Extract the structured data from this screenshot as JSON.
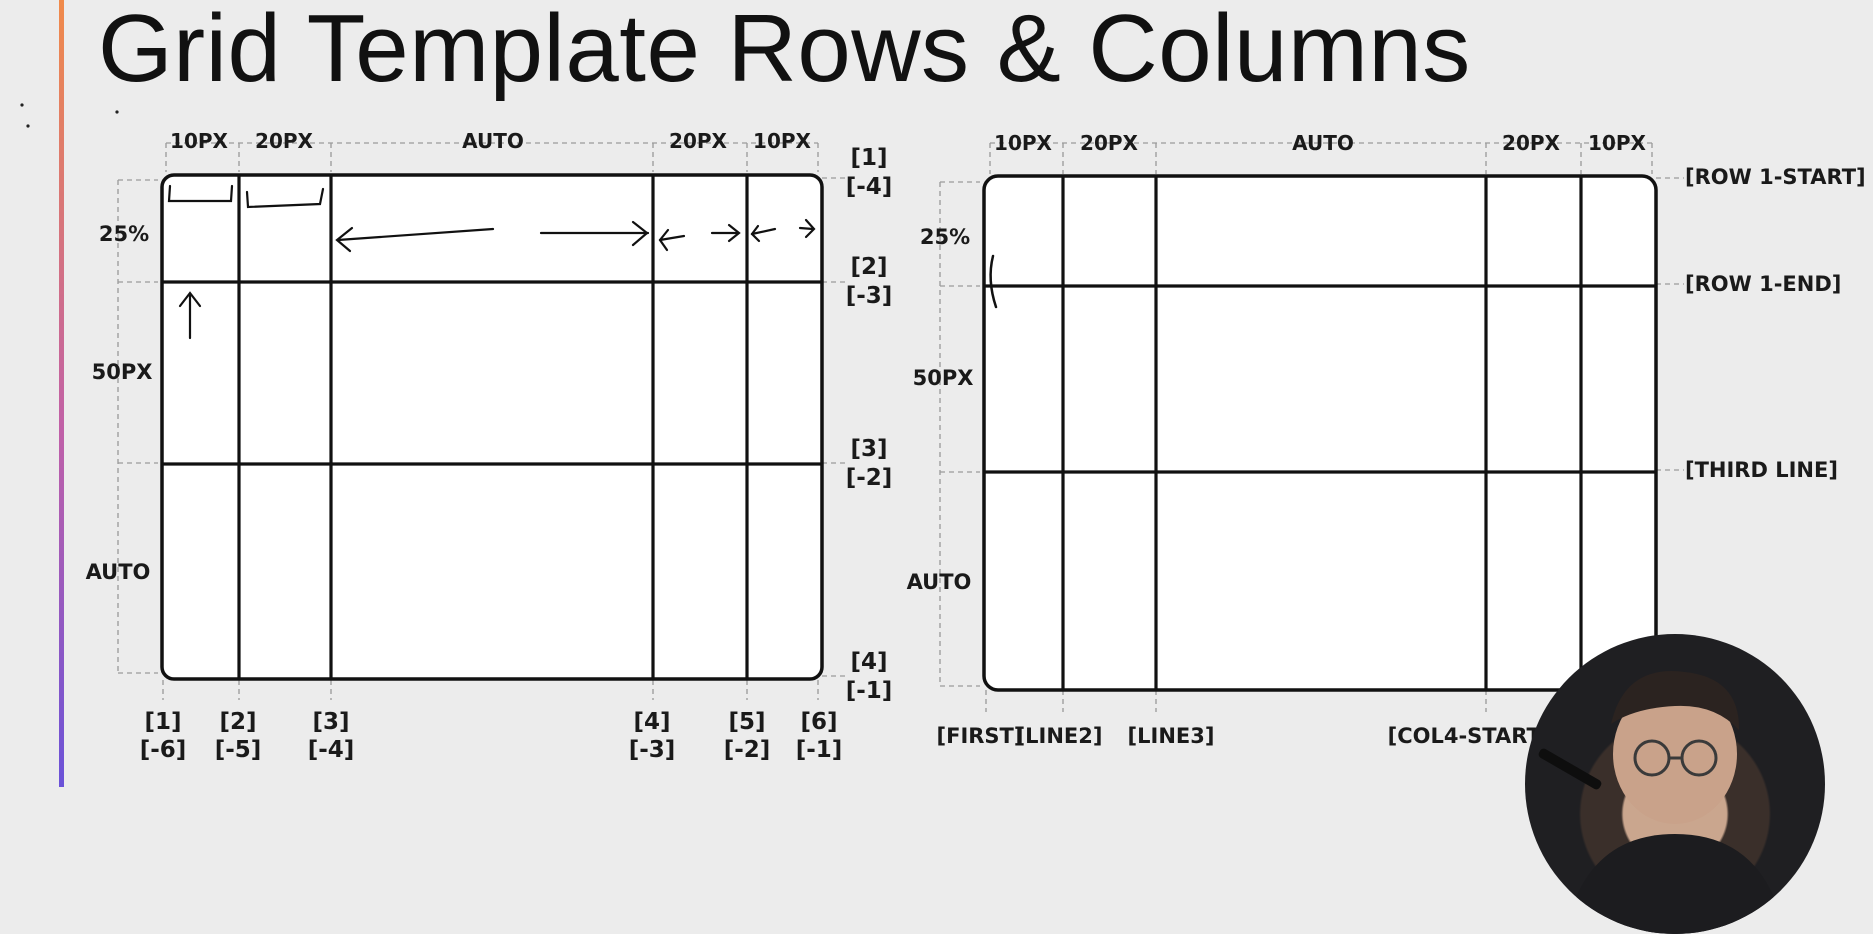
{
  "title": "Grid Template Rows & Columns",
  "diagram_left": {
    "columns": [
      "10PX",
      "20PX",
      "AUTO",
      "20PX",
      "10PX"
    ],
    "rows": [
      "25%",
      "50PX",
      "AUTO"
    ],
    "row_line_labels": [
      {
        "pos": "[1]",
        "neg": "[-4]"
      },
      {
        "pos": "[2]",
        "neg": "[-3]"
      },
      {
        "pos": "[3]",
        "neg": "[-2]"
      },
      {
        "pos": "[4]",
        "neg": "[-1]"
      }
    ],
    "col_line_labels": [
      {
        "pos": "[1]",
        "neg": "[-6]"
      },
      {
        "pos": "[2]",
        "neg": "[-5]"
      },
      {
        "pos": "[3]",
        "neg": "[-4]"
      },
      {
        "pos": "[4]",
        "neg": "[-3]"
      },
      {
        "pos": "[5]",
        "neg": "[-2]"
      },
      {
        "pos": "[6]",
        "neg": "[-1]"
      }
    ]
  },
  "diagram_right": {
    "columns": [
      "10PX",
      "20PX",
      "AUTO",
      "20PX",
      "10PX"
    ],
    "rows": [
      "25%",
      "50PX",
      "AUTO"
    ],
    "row_line_names": [
      "[ROW 1-START]",
      "[ROW 1-END]",
      "[THIRD LINE]"
    ],
    "col_line_names": [
      "[FIRST]",
      "[LINE2]",
      "[LINE3]",
      "[COL4-START]"
    ]
  },
  "colors": {
    "background": "#ececec",
    "ink": "#111111",
    "guide": "#9a9a9a"
  }
}
